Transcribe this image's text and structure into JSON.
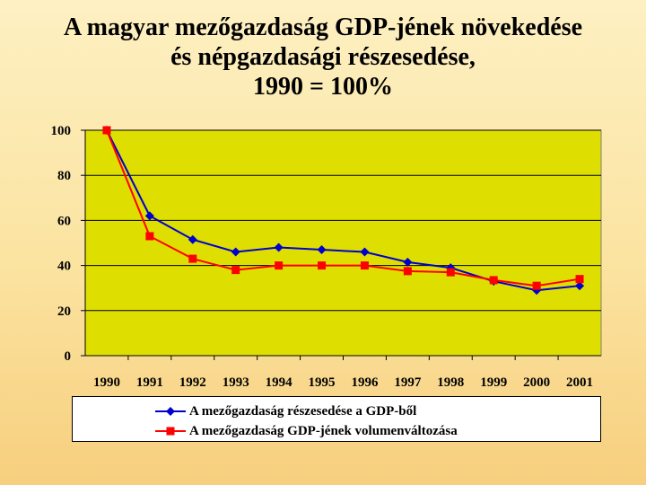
{
  "title_lines": [
    "A magyar mezőgazdaság GDP-jének növekedése",
    "és népgazdasági részesedése,",
    "1990 = 100%"
  ],
  "chart_data": {
    "type": "line",
    "categories": [
      "1990",
      "1991",
      "1992",
      "1993",
      "1994",
      "1995",
      "1996",
      "1997",
      "1998",
      "1999",
      "2000",
      "2001"
    ],
    "ylim": [
      0,
      100
    ],
    "yticks": [
      0,
      20,
      40,
      60,
      80,
      100
    ],
    "grid": true,
    "legend_position": "bottom",
    "series": [
      {
        "name": "A mezőgazdaság részesedése a GDP-ből",
        "color": "#0000cc",
        "marker": "diamond",
        "values": [
          100,
          62,
          51.5,
          46,
          48,
          47,
          46,
          41.5,
          39,
          33,
          29,
          31
        ]
      },
      {
        "name": "A mezőgazdaság GDP-jének volumenváltozása",
        "color": "#ff0000",
        "marker": "square",
        "values": [
          100,
          53,
          43,
          38,
          40,
          40,
          40,
          37.5,
          37,
          33.5,
          31,
          34
        ]
      }
    ]
  }
}
